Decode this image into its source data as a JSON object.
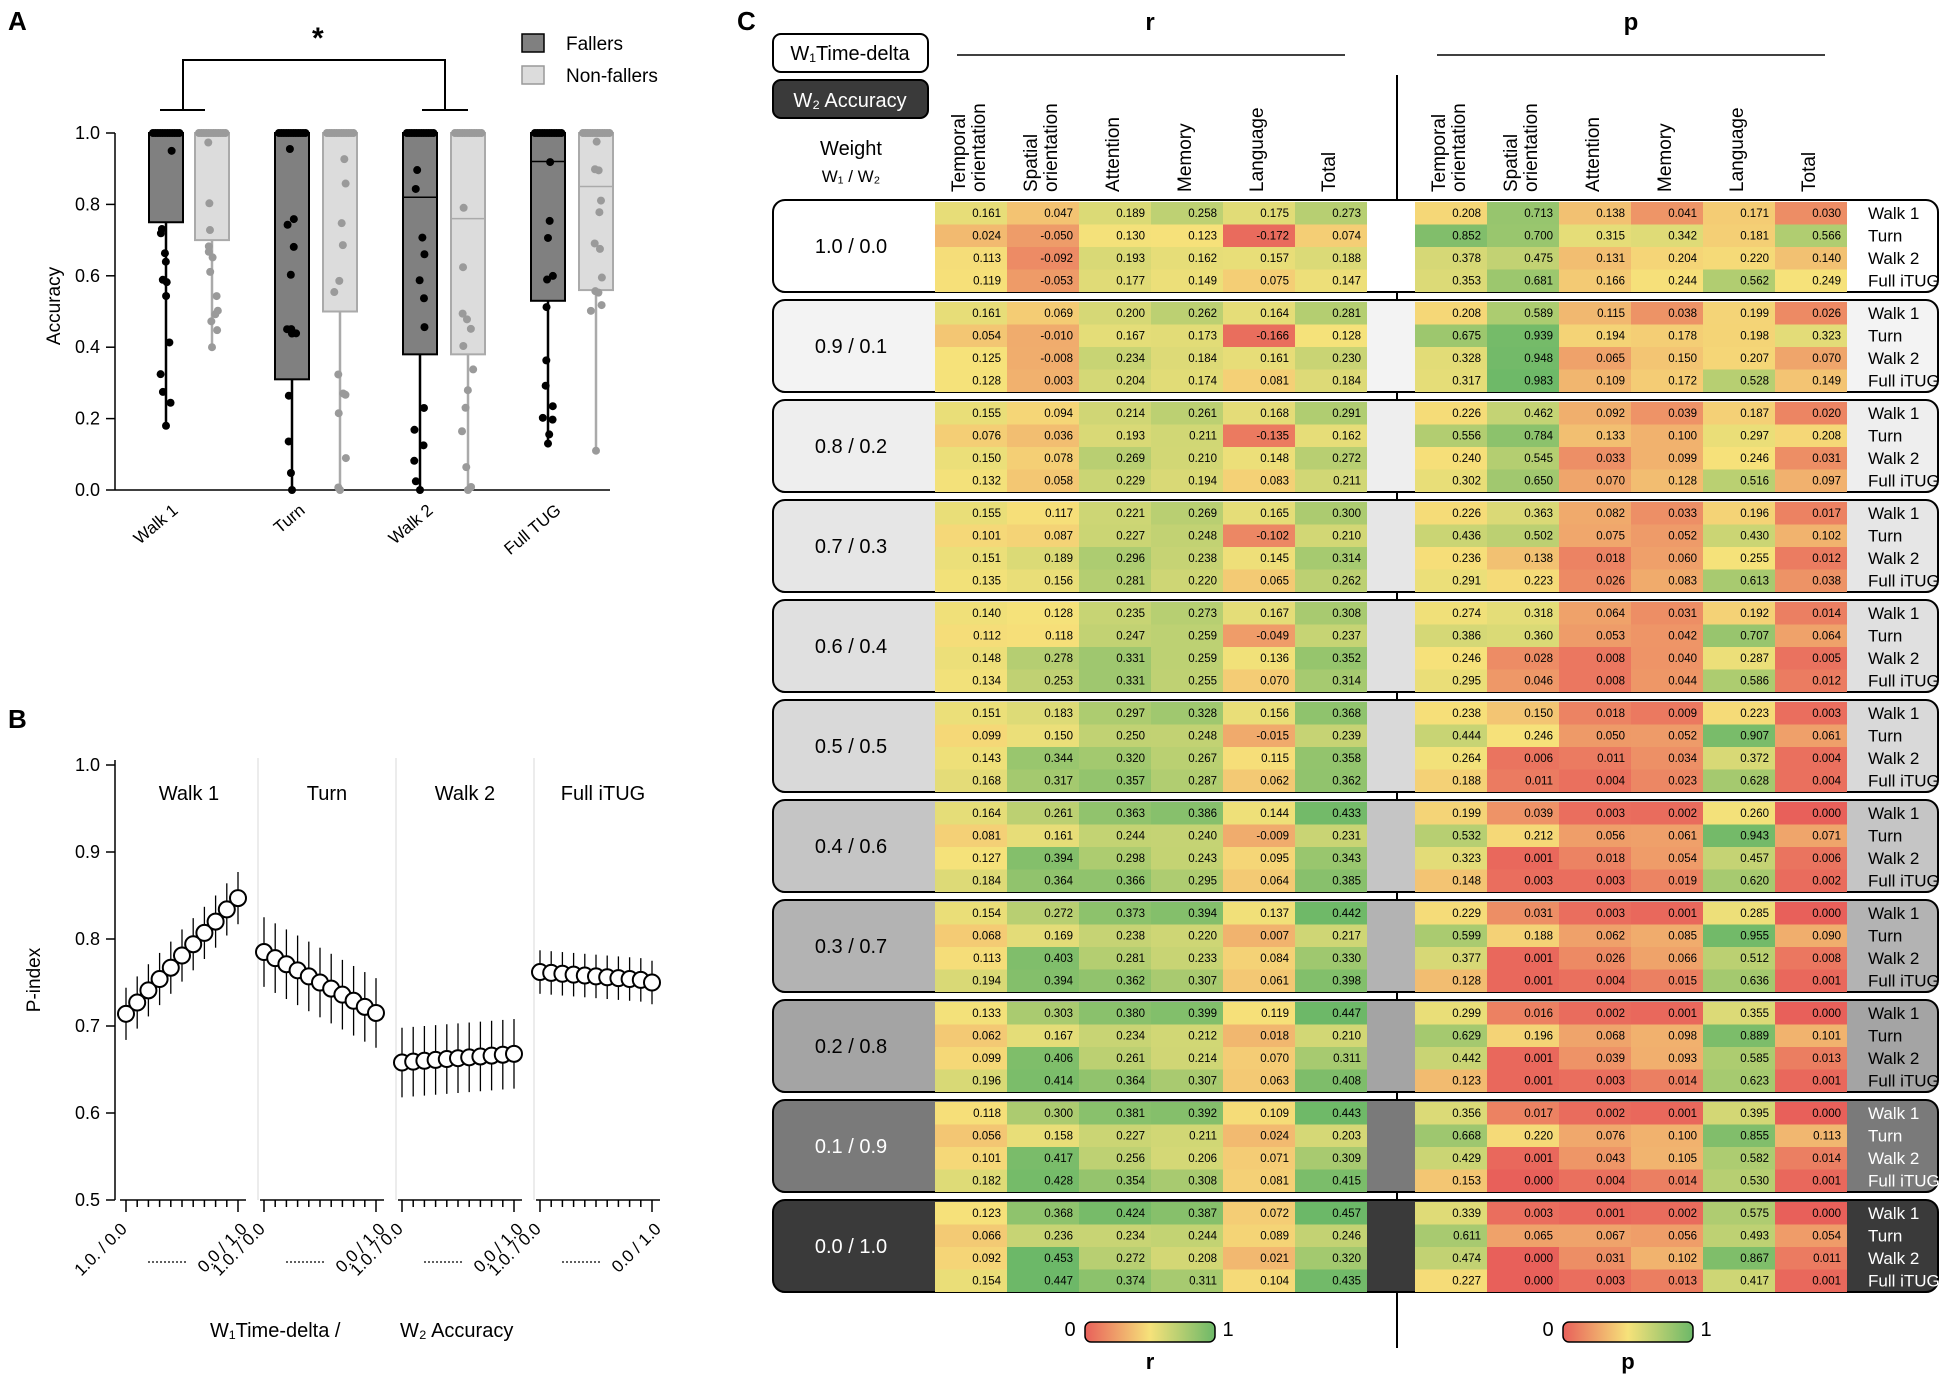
{
  "colors": {
    "fallers_fill": "#808080",
    "nonfallers_fill": "#dcdcdc",
    "fallers_dot": "#000000",
    "nonfallers_dot": "#9a9a9a",
    "heat_low": "#e8605a",
    "heat_mid": "#f6e27a",
    "heat_high": "#6cb868",
    "w1_box": "#ffffff",
    "w2_box": "#3a3a3a"
  },
  "panelA": {
    "label": "A",
    "sig": "*",
    "legend": [
      "Fallers",
      "Non-fallers"
    ],
    "chart_data": {
      "type": "bar",
      "title": "",
      "ylabel": "Accuracy",
      "ylim": [
        0,
        1
      ],
      "yticks": [
        "0.0",
        "0.2",
        "0.4",
        "0.6",
        "0.8",
        "1.0"
      ],
      "categories": [
        "Walk 1",
        "Turn",
        "Walk 2",
        "Full TUG"
      ],
      "series": [
        {
          "name": "Fallers",
          "median": [
            1.0,
            1.0,
            0.82,
            0.92
          ],
          "q1": [
            0.75,
            0.31,
            0.38,
            0.53
          ],
          "q3": [
            1.0,
            1.0,
            1.0,
            1.0
          ],
          "min": [
            0.18,
            0.0,
            0.0,
            0.13
          ],
          "max": [
            1.0,
            1.0,
            1.0,
            1.0
          ]
        },
        {
          "name": "Non-fallers",
          "median": [
            1.0,
            1.0,
            0.76,
            0.85
          ],
          "q1": [
            0.7,
            0.5,
            0.38,
            0.56
          ],
          "q3": [
            1.0,
            1.0,
            1.0,
            1.0
          ],
          "min": [
            0.4,
            0.0,
            0.0,
            0.11
          ],
          "max": [
            1.0,
            1.0,
            1.0,
            1.0
          ]
        }
      ]
    }
  },
  "panelB": {
    "label": "B",
    "chart_data": {
      "type": "line",
      "ylabel": "P-index",
      "ylim": [
        0.5,
        1.0
      ],
      "yticks": [
        "0.5",
        "0.6",
        "0.7",
        "0.8",
        "0.9",
        "1.0"
      ],
      "xtick_start": "1.0. / 0.0",
      "xtick_end": "0.0 / 1.0",
      "xlabel_a": "W₁Time-delta /",
      "xlabel_b": "W₂ Accuracy",
      "series": [
        {
          "name": "Walk 1",
          "values": [
            0.714,
            0.727,
            0.741,
            0.754,
            0.767,
            0.781,
            0.794,
            0.807,
            0.82,
            0.834,
            0.847
          ],
          "err": 0.03
        },
        {
          "name": "Turn",
          "values": [
            0.785,
            0.778,
            0.771,
            0.764,
            0.757,
            0.75,
            0.743,
            0.736,
            0.729,
            0.722,
            0.715
          ],
          "err": 0.04
        },
        {
          "name": "Walk 2",
          "values": [
            0.658,
            0.659,
            0.66,
            0.661,
            0.662,
            0.663,
            0.664,
            0.665,
            0.666,
            0.667,
            0.668
          ],
          "err": 0.04
        },
        {
          "name": "Full iTUG",
          "values": [
            0.762,
            0.761,
            0.76,
            0.759,
            0.758,
            0.757,
            0.756,
            0.755,
            0.754,
            0.753,
            0.75
          ],
          "err": 0.025
        }
      ]
    }
  },
  "panelC": {
    "label": "C",
    "w1_label": "W₁Time-delta",
    "w2_label": "W₂ Accuracy",
    "weight_title": "Weight",
    "weight_sub": "W₁ / W₂",
    "r_title": "r",
    "p_title": "p",
    "columns": [
      "Temporal orientation",
      "Spatial orientation",
      "Attention",
      "Memory",
      "Language",
      "Total"
    ],
    "rows": [
      "Walk 1",
      "Turn",
      "Walk 2",
      "Full iTUG"
    ],
    "scale_min": "0",
    "scale_max": "1",
    "chart_data": {
      "type": "heatmap",
      "blocks": [
        {
          "weight": "1.0 / 0.0",
          "r": [
            [
              "0.161",
              "0.047",
              "0.189",
              "0.258",
              "0.175",
              "0.273"
            ],
            [
              "0.024",
              "-0.050",
              "0.130",
              "0.123",
              "-0.172",
              "0.074"
            ],
            [
              "0.113",
              "-0.092",
              "0.193",
              "0.162",
              "0.157",
              "0.188"
            ],
            [
              "0.119",
              "-0.053",
              "0.177",
              "0.149",
              "0.075",
              "0.147"
            ]
          ],
          "p": [
            [
              "0.208",
              "0.713",
              "0.138",
              "0.041",
              "0.171",
              "0.030"
            ],
            [
              "0.852",
              "0.700",
              "0.315",
              "0.342",
              "0.181",
              "0.566"
            ],
            [
              "0.378",
              "0.475",
              "0.131",
              "0.204",
              "0.220",
              "0.140"
            ],
            [
              "0.353",
              "0.681",
              "0.166",
              "0.244",
              "0.562",
              "0.249"
            ]
          ]
        },
        {
          "weight": "0.9 / 0.1",
          "r": [
            [
              "0.161",
              "0.069",
              "0.200",
              "0.262",
              "0.164",
              "0.281"
            ],
            [
              "0.054",
              "-0.010",
              "0.167",
              "0.173",
              "-0.166",
              "0.128"
            ],
            [
              "0.125",
              "-0.008",
              "0.234",
              "0.184",
              "0.161",
              "0.230"
            ],
            [
              "0.128",
              "0.003",
              "0.204",
              "0.174",
              "0.081",
              "0.184"
            ]
          ],
          "p": [
            [
              "0.208",
              "0.589",
              "0.115",
              "0.038",
              "0.199",
              "0.026"
            ],
            [
              "0.675",
              "0.939",
              "0.194",
              "0.178",
              "0.198",
              "0.323"
            ],
            [
              "0.328",
              "0.948",
              "0.065",
              "0.150",
              "0.207",
              "0.070"
            ],
            [
              "0.317",
              "0.983",
              "0.109",
              "0.172",
              "0.528",
              "0.149"
            ]
          ]
        },
        {
          "weight": "0.8 / 0.2",
          "r": [
            [
              "0.155",
              "0.094",
              "0.214",
              "0.261",
              "0.168",
              "0.291"
            ],
            [
              "0.076",
              "0.036",
              "0.193",
              "0.211",
              "-0.135",
              "0.162"
            ],
            [
              "0.150",
              "0.078",
              "0.269",
              "0.210",
              "0.148",
              "0.272"
            ],
            [
              "0.132",
              "0.058",
              "0.229",
              "0.194",
              "0.083",
              "0.211"
            ]
          ],
          "p": [
            [
              "0.226",
              "0.462",
              "0.092",
              "0.039",
              "0.187",
              "0.020"
            ],
            [
              "0.556",
              "0.784",
              "0.133",
              "0.100",
              "0.297",
              "0.208"
            ],
            [
              "0.240",
              "0.545",
              "0.033",
              "0.099",
              "0.246",
              "0.031"
            ],
            [
              "0.302",
              "0.650",
              "0.070",
              "0.128",
              "0.516",
              "0.097"
            ]
          ]
        },
        {
          "weight": "0.7 / 0.3",
          "r": [
            [
              "0.155",
              "0.117",
              "0.221",
              "0.269",
              "0.165",
              "0.300"
            ],
            [
              "0.101",
              "0.087",
              "0.227",
              "0.248",
              "-0.102",
              "0.210"
            ],
            [
              "0.151",
              "0.189",
              "0.296",
              "0.238",
              "0.145",
              "0.314"
            ],
            [
              "0.135",
              "0.156",
              "0.281",
              "0.220",
              "0.065",
              "0.262"
            ]
          ],
          "p": [
            [
              "0.226",
              "0.363",
              "0.082",
              "0.033",
              "0.196",
              "0.017"
            ],
            [
              "0.436",
              "0.502",
              "0.075",
              "0.052",
              "0.430",
              "0.102"
            ],
            [
              "0.236",
              "0.138",
              "0.018",
              "0.060",
              "0.255",
              "0.012"
            ],
            [
              "0.291",
              "0.223",
              "0.026",
              "0.083",
              "0.613",
              "0.038"
            ]
          ]
        },
        {
          "weight": "0.6 / 0.4",
          "r": [
            [
              "0.140",
              "0.128",
              "0.235",
              "0.273",
              "0.167",
              "0.308"
            ],
            [
              "0.112",
              "0.118",
              "0.247",
              "0.259",
              "-0.049",
              "0.237"
            ],
            [
              "0.148",
              "0.278",
              "0.331",
              "0.259",
              "0.136",
              "0.352"
            ],
            [
              "0.134",
              "0.253",
              "0.331",
              "0.255",
              "0.070",
              "0.314"
            ]
          ],
          "p": [
            [
              "0.274",
              "0.318",
              "0.064",
              "0.031",
              "0.192",
              "0.014"
            ],
            [
              "0.386",
              "0.360",
              "0.053",
              "0.042",
              "0.707",
              "0.064"
            ],
            [
              "0.246",
              "0.028",
              "0.008",
              "0.040",
              "0.287",
              "0.005"
            ],
            [
              "0.295",
              "0.046",
              "0.008",
              "0.044",
              "0.586",
              "0.012"
            ]
          ]
        },
        {
          "weight": "0.5 / 0.5",
          "r": [
            [
              "0.151",
              "0.183",
              "0.297",
              "0.328",
              "0.156",
              "0.368"
            ],
            [
              "0.099",
              "0.150",
              "0.250",
              "0.248",
              "-0.015",
              "0.239"
            ],
            [
              "0.143",
              "0.344",
              "0.320",
              "0.267",
              "0.115",
              "0.358"
            ],
            [
              "0.168",
              "0.317",
              "0.357",
              "0.287",
              "0.062",
              "0.362"
            ]
          ],
          "p": [
            [
              "0.238",
              "0.150",
              "0.018",
              "0.009",
              "0.223",
              "0.003"
            ],
            [
              "0.444",
              "0.246",
              "0.050",
              "0.052",
              "0.907",
              "0.061"
            ],
            [
              "0.264",
              "0.006",
              "0.011",
              "0.034",
              "0.372",
              "0.004"
            ],
            [
              "0.188",
              "0.011",
              "0.004",
              "0.023",
              "0.628",
              "0.004"
            ]
          ]
        },
        {
          "weight": "0.4 / 0.6",
          "r": [
            [
              "0.164",
              "0.261",
              "0.363",
              "0.386",
              "0.144",
              "0.433"
            ],
            [
              "0.081",
              "0.161",
              "0.244",
              "0.240",
              "-0.009",
              "0.231"
            ],
            [
              "0.127",
              "0.394",
              "0.298",
              "0.243",
              "0.095",
              "0.343"
            ],
            [
              "0.184",
              "0.364",
              "0.366",
              "0.295",
              "0.064",
              "0.385"
            ]
          ],
          "p": [
            [
              "0.199",
              "0.039",
              "0.003",
              "0.002",
              "0.260",
              "0.000"
            ],
            [
              "0.532",
              "0.212",
              "0.056",
              "0.061",
              "0.943",
              "0.071"
            ],
            [
              "0.323",
              "0.001",
              "0.018",
              "0.054",
              "0.457",
              "0.006"
            ],
            [
              "0.148",
              "0.003",
              "0.003",
              "0.019",
              "0.620",
              "0.002"
            ]
          ]
        },
        {
          "weight": "0.3 / 0.7",
          "r": [
            [
              "0.154",
              "0.272",
              "0.373",
              "0.394",
              "0.137",
              "0.442"
            ],
            [
              "0.068",
              "0.169",
              "0.238",
              "0.220",
              "0.007",
              "0.217"
            ],
            [
              "0.113",
              "0.403",
              "0.281",
              "0.233",
              "0.084",
              "0.330"
            ],
            [
              "0.194",
              "0.394",
              "0.362",
              "0.307",
              "0.061",
              "0.398"
            ]
          ],
          "p": [
            [
              "0.229",
              "0.031",
              "0.003",
              "0.001",
              "0.285",
              "0.000"
            ],
            [
              "0.599",
              "0.188",
              "0.062",
              "0.085",
              "0.955",
              "0.090"
            ],
            [
              "0.377",
              "0.001",
              "0.026",
              "0.066",
              "0.512",
              "0.008"
            ],
            [
              "0.128",
              "0.001",
              "0.004",
              "0.015",
              "0.636",
              "0.001"
            ]
          ]
        },
        {
          "weight": "0.2 / 0.8",
          "r": [
            [
              "0.133",
              "0.303",
              "0.380",
              "0.399",
              "0.119",
              "0.447"
            ],
            [
              "0.062",
              "0.167",
              "0.234",
              "0.212",
              "0.018",
              "0.210"
            ],
            [
              "0.099",
              "0.406",
              "0.261",
              "0.214",
              "0.070",
              "0.311"
            ],
            [
              "0.196",
              "0.414",
              "0.364",
              "0.307",
              "0.063",
              "0.408"
            ]
          ],
          "p": [
            [
              "0.299",
              "0.016",
              "0.002",
              "0.001",
              "0.355",
              "0.000"
            ],
            [
              "0.629",
              "0.196",
              "0.068",
              "0.098",
              "0.889",
              "0.101"
            ],
            [
              "0.442",
              "0.001",
              "0.039",
              "0.093",
              "0.585",
              "0.013"
            ],
            [
              "0.123",
              "0.001",
              "0.003",
              "0.014",
              "0.623",
              "0.001"
            ]
          ]
        },
        {
          "weight": "0.1 / 0.9",
          "r": [
            [
              "0.118",
              "0.300",
              "0.381",
              "0.392",
              "0.109",
              "0.443"
            ],
            [
              "0.056",
              "0.158",
              "0.227",
              "0.211",
              "0.024",
              "0.203"
            ],
            [
              "0.101",
              "0.417",
              "0.256",
              "0.206",
              "0.071",
              "0.309"
            ],
            [
              "0.182",
              "0.428",
              "0.354",
              "0.308",
              "0.081",
              "0.415"
            ]
          ],
          "p": [
            [
              "0.356",
              "0.017",
              "0.002",
              "0.001",
              "0.395",
              "0.000"
            ],
            [
              "0.668",
              "0.220",
              "0.076",
              "0.100",
              "0.855",
              "0.113"
            ],
            [
              "0.429",
              "0.001",
              "0.043",
              "0.105",
              "0.582",
              "0.014"
            ],
            [
              "0.153",
              "0.000",
              "0.004",
              "0.014",
              "0.530",
              "0.001"
            ]
          ]
        },
        {
          "weight": "0.0 / 1.0",
          "r": [
            [
              "0.123",
              "0.368",
              "0.424",
              "0.387",
              "0.072",
              "0.457"
            ],
            [
              "0.066",
              "0.236",
              "0.234",
              "0.244",
              "0.089",
              "0.246"
            ],
            [
              "0.092",
              "0.453",
              "0.272",
              "0.208",
              "0.021",
              "0.320"
            ],
            [
              "0.154",
              "0.447",
              "0.374",
              "0.311",
              "0.104",
              "0.435"
            ]
          ],
          "p": [
            [
              "0.339",
              "0.003",
              "0.001",
              "0.002",
              "0.575",
              "0.000"
            ],
            [
              "0.611",
              "0.065",
              "0.067",
              "0.056",
              "0.493",
              "0.054"
            ],
            [
              "0.474",
              "0.000",
              "0.031",
              "0.102",
              "0.867",
              "0.011"
            ],
            [
              "0.227",
              "0.000",
              "0.003",
              "0.013",
              "0.417",
              "0.001"
            ]
          ]
        }
      ]
    }
  }
}
